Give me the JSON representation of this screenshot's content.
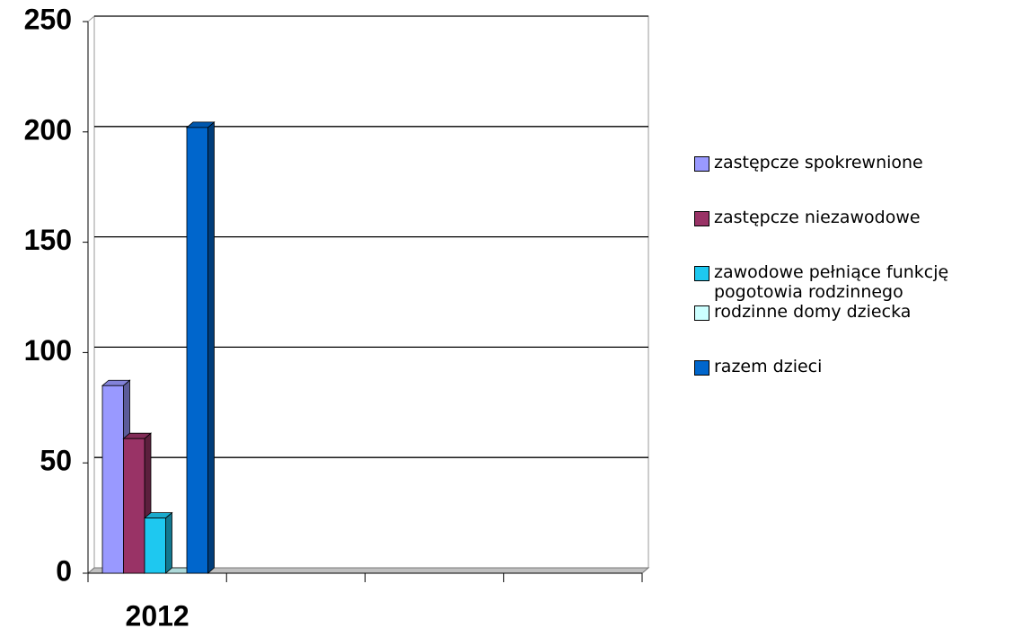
{
  "chart_data": {
    "type": "bar3d",
    "categories": [
      "2012",
      null,
      null,
      null
    ],
    "series": [
      {
        "name": "zastępcze spokrewnione",
        "color": "#9999ff",
        "values": [
          85,
          null,
          null,
          null
        ]
      },
      {
        "name": "zastępcze niezawodowe",
        "color": "#993366",
        "values": [
          61,
          null,
          null,
          null
        ]
      },
      {
        "name": "zawodowe pełniące funkcję pogotowia rodzinnego",
        "color": "#1ec8f0",
        "values": [
          25,
          null,
          null,
          null
        ]
      },
      {
        "name": "rodzinne domy dziecka",
        "color": "#ccffff",
        "values": [
          0,
          null,
          null,
          null
        ]
      },
      {
        "name": "razem dzieci",
        "color": "#0066cc",
        "values": [
          202,
          null,
          null,
          null
        ]
      }
    ],
    "ylim": [
      0,
      250
    ],
    "yticks": [
      0,
      50,
      100,
      150,
      200,
      250
    ],
    "grid": true,
    "legend": "right"
  }
}
